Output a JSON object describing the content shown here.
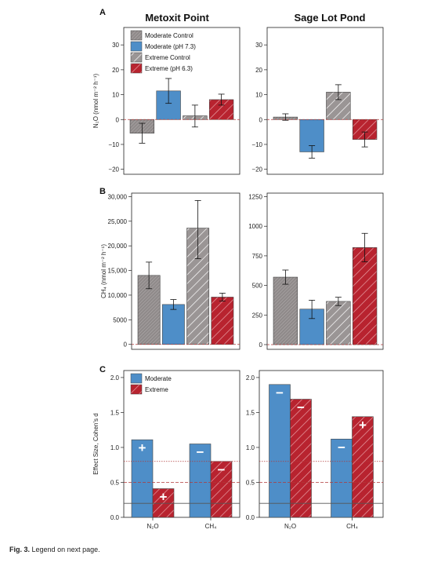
{
  "figure": {
    "caption_label": "Fig. 3.",
    "caption_text": "Legend on next page.",
    "site_titles": [
      "Metoxit Point",
      "Sage Lot Pond"
    ],
    "colors": {
      "moderate_control": "#9a9595",
      "moderate": "#4e8ec8",
      "extreme_control": "#9a9595",
      "extreme": "#b8232f",
      "reference_solid": "#555555",
      "reference_dotted": "#b03a3a",
      "reference_dashed": "#b03a3a"
    }
  },
  "chart_data": [
    {
      "panel": "A",
      "site": "Metoxit Point",
      "type": "bar",
      "title": "Metoxit Point",
      "ylabel": "N₂O (nmol m⁻² h⁻¹)",
      "ylim": [
        -22,
        37
      ],
      "yticks": [
        -20,
        -10,
        0,
        10,
        20,
        30
      ],
      "ytick_labels": [
        "−20",
        "−10",
        "0",
        "10",
        "20",
        "30"
      ],
      "zero_line": "dashed",
      "legend": {
        "placement": "top-left",
        "entries": [
          {
            "label": "Moderate Control",
            "style": "moderate_control"
          },
          {
            "label": "Moderate (pH 7.3)",
            "style": "moderate"
          },
          {
            "label": "Extreme Control",
            "style": "extreme_control"
          },
          {
            "label": "Extreme (pH 6.3)",
            "style": "extreme"
          }
        ]
      },
      "bars": [
        {
          "series": "Moderate Control",
          "style": "moderate_control",
          "value": -5.5,
          "err_low": -9.5,
          "err_high": -1.5
        },
        {
          "series": "Moderate (pH 7.3)",
          "style": "moderate",
          "value": 11.5,
          "err_low": 6.5,
          "err_high": 16.5
        },
        {
          "series": "Extreme Control",
          "style": "extreme_control",
          "value": 1.5,
          "err_low": -3.0,
          "err_high": 5.8
        },
        {
          "series": "Extreme (pH 6.3)",
          "style": "extreme",
          "value": 8.0,
          "err_low": 5.8,
          "err_high": 10.2
        }
      ]
    },
    {
      "panel": "A",
      "site": "Sage Lot Pond",
      "type": "bar",
      "title": "Sage Lot Pond",
      "ylim": [
        -22,
        37
      ],
      "yticks": [
        -20,
        -10,
        0,
        10,
        20,
        30
      ],
      "ytick_labels": [
        "−20",
        "−10",
        "0",
        "10",
        "20",
        "30"
      ],
      "zero_line": "dashed",
      "bars": [
        {
          "series": "Moderate Control",
          "style": "moderate_control",
          "value": 1.0,
          "err_low": -0.3,
          "err_high": 2.3
        },
        {
          "series": "Moderate (pH 7.3)",
          "style": "moderate",
          "value": -13.0,
          "err_low": -15.5,
          "err_high": -10.5
        },
        {
          "series": "Extreme Control",
          "style": "extreme_control",
          "value": 11.0,
          "err_low": 8.0,
          "err_high": 14.0
        },
        {
          "series": "Extreme (pH 6.3)",
          "style": "extreme",
          "value": -8.0,
          "err_low": -11.0,
          "err_high": -5.0
        }
      ]
    },
    {
      "panel": "B",
      "site": "Metoxit Point",
      "type": "bar",
      "ylabel": "CH₄ (nmol m⁻² h⁻¹)",
      "ylim": [
        -1000,
        30700
      ],
      "yticks": [
        0,
        5000,
        10000,
        15000,
        20000,
        25000,
        30000
      ],
      "ytick_labels": [
        "0",
        "5000",
        "10,000",
        "15,000",
        "20,000",
        "25,000",
        "30,000"
      ],
      "zero_line": "dashed",
      "bars": [
        {
          "series": "Moderate Control",
          "style": "moderate_control",
          "value": 14000,
          "err_low": 11300,
          "err_high": 16700
        },
        {
          "series": "Moderate (pH 7.3)",
          "style": "moderate",
          "value": 8100,
          "err_low": 7100,
          "err_high": 9100
        },
        {
          "series": "Extreme Control",
          "style": "extreme_control",
          "value": 23600,
          "err_low": 17400,
          "err_high": 29200
        },
        {
          "series": "Extreme (pH 6.3)",
          "style": "extreme",
          "value": 9600,
          "err_low": 8800,
          "err_high": 10400
        }
      ]
    },
    {
      "panel": "B",
      "site": "Sage Lot Pond",
      "type": "bar",
      "ylim": [
        -40,
        1280
      ],
      "yticks": [
        0,
        250,
        500,
        750,
        1000,
        1250
      ],
      "ytick_labels": [
        "0",
        "250",
        "500",
        "750",
        "1000",
        "1250"
      ],
      "zero_line": "dashed",
      "bars": [
        {
          "series": "Moderate Control",
          "style": "moderate_control",
          "value": 570,
          "err_low": 510,
          "err_high": 630
        },
        {
          "series": "Moderate (pH 7.3)",
          "style": "moderate",
          "value": 300,
          "err_low": 220,
          "err_high": 375
        },
        {
          "series": "Extreme Control",
          "style": "extreme_control",
          "value": 365,
          "err_low": 330,
          "err_high": 400
        },
        {
          "series": "Extreme (pH 6.3)",
          "style": "extreme",
          "value": 820,
          "err_low": 700,
          "err_high": 940
        }
      ]
    },
    {
      "panel": "C",
      "site": "Metoxit Point",
      "type": "bar",
      "ylabel": "Effect Size, Cohen’s d",
      "ylim": [
        0,
        2.1
      ],
      "yticks": [
        0.0,
        0.5,
        1.0,
        1.5,
        2.0
      ],
      "ytick_labels": [
        "0.0",
        "0.5",
        "1.0",
        "1.5",
        "2.0"
      ],
      "categories": [
        "N₂O",
        "CH₄"
      ],
      "reference_lines": [
        {
          "value": 0.2,
          "style": "solid"
        },
        {
          "value": 0.5,
          "style": "dashed"
        },
        {
          "value": 0.8,
          "style": "dotted"
        }
      ],
      "legend": {
        "placement": "top-left",
        "entries": [
          {
            "label": "Moderate",
            "style": "moderate"
          },
          {
            "label": "Extreme",
            "style": "extreme"
          }
        ]
      },
      "series": [
        {
          "name": "Moderate",
          "style": "moderate",
          "values": [
            1.11,
            1.05
          ],
          "signs": [
            "+",
            "−"
          ]
        },
        {
          "name": "Extreme",
          "style": "extreme",
          "values": [
            0.41,
            0.8
          ],
          "signs": [
            "+",
            "−"
          ]
        }
      ]
    },
    {
      "panel": "C",
      "site": "Sage Lot Pond",
      "type": "bar",
      "ylim": [
        0,
        2.1
      ],
      "yticks": [
        0.0,
        0.5,
        1.0,
        1.5,
        2.0
      ],
      "ytick_labels": [
        "0.0",
        "0.5",
        "1.0",
        "1.5",
        "2.0"
      ],
      "categories": [
        "N₂O",
        "CH₄"
      ],
      "reference_lines": [
        {
          "value": 0.2,
          "style": "solid"
        },
        {
          "value": 0.5,
          "style": "dashed"
        },
        {
          "value": 0.8,
          "style": "dotted"
        }
      ],
      "series": [
        {
          "name": "Moderate",
          "style": "moderate",
          "values": [
            1.9,
            1.12
          ],
          "signs": [
            "−",
            "−"
          ]
        },
        {
          "name": "Extreme",
          "style": "extreme",
          "values": [
            1.69,
            1.44
          ],
          "signs": [
            "−",
            "+"
          ]
        }
      ]
    }
  ],
  "panel_letters": [
    "A",
    "B",
    "C"
  ]
}
